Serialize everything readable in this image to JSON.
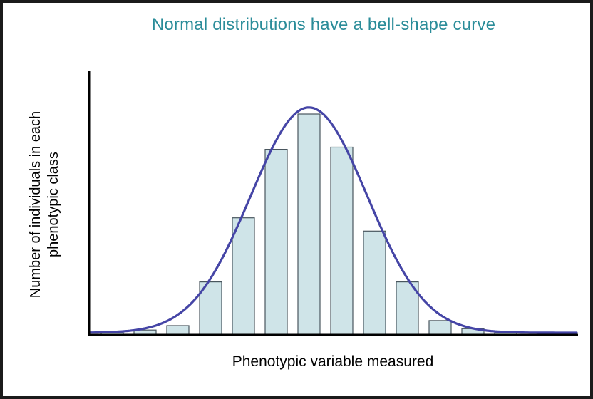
{
  "title": "Normal distributions have a bell-shape curve",
  "colors": {
    "title": "#2A8C99",
    "bar_fill": "#CFE4E8",
    "bar_stroke": "#49565E",
    "curve": "#4545A6",
    "axis": "#000000",
    "border": "#1B1B1B",
    "background": "#FFFFFF"
  },
  "chart_data": {
    "type": "bar",
    "title": "Normal distributions have a bell-shape curve",
    "xlabel": "Phenotypic variable measured",
    "ylabel": "Number of individuals in each phenotypic class",
    "ylabel_lines": [
      "Number of individuals in each",
      "phenotypic class"
    ],
    "tick_labels": "none",
    "grid": false,
    "legend": false,
    "y_scale": "relative height (peak bar = 1.0), no numeric ticks shown",
    "values": [
      0.012,
      0.022,
      0.042,
      0.24,
      0.53,
      0.84,
      1.0,
      0.85,
      0.47,
      0.24,
      0.065,
      0.028,
      0.012
    ],
    "overlay": {
      "type": "normal-curve",
      "mu_bar_index": 6,
      "sigma_in_bars": 1.78,
      "amplitude": 1.02
    }
  }
}
